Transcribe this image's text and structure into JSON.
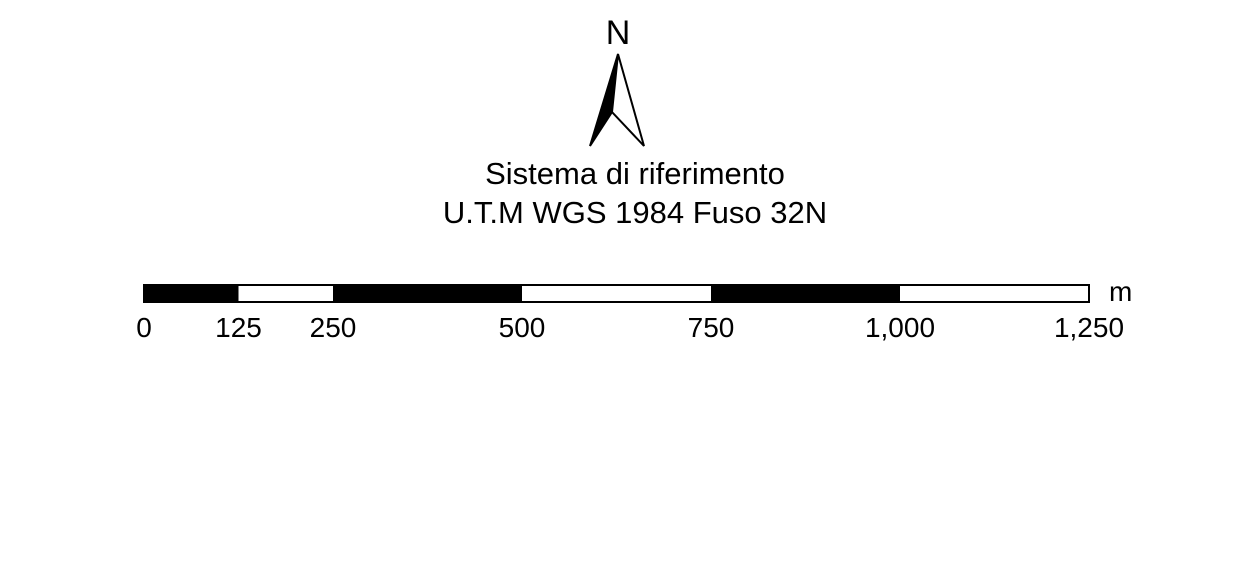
{
  "north_arrow": {
    "label": "N",
    "icon": "north-arrow-icon"
  },
  "reference_system": {
    "line1": "Sistema di riferimento",
    "line2": "U.T.M WGS 1984 Fuso 32N"
  },
  "scale_bar": {
    "unit": "m",
    "max_value": 1250,
    "segment_boundaries": [
      0,
      125,
      250,
      500,
      750,
      1000,
      1250
    ],
    "segment_fills": [
      "black",
      "white",
      "black",
      "white",
      "black",
      "white"
    ],
    "ticks": [
      {
        "value": 0,
        "label": "0"
      },
      {
        "value": 125,
        "label": "125"
      },
      {
        "value": 250,
        "label": "250"
      },
      {
        "value": 500,
        "label": "500"
      },
      {
        "value": 750,
        "label": "750"
      },
      {
        "value": 1000,
        "label": "1,000"
      },
      {
        "value": 1250,
        "label": "1,250"
      }
    ],
    "colors": {
      "dark": "#000000",
      "light": "#ffffff"
    }
  }
}
